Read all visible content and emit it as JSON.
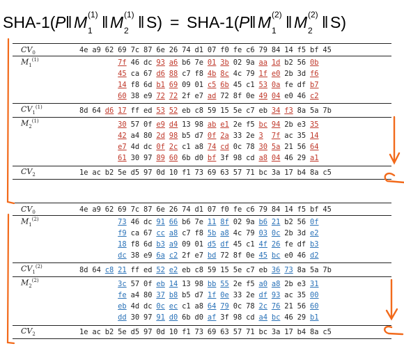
{
  "title": {
    "prefix": "SHA-1(",
    "P": "P",
    "M": "M",
    "sub1": "1",
    "sub2": "2",
    "sup1": "(1)",
    "sup2": "(2)",
    "bars": "‖",
    "S": "S)",
    "equals": "=",
    "prefix2": "SHA-1("
  },
  "labels": {
    "cv0": "CV",
    "cv0_sub": "0",
    "m": "M",
    "cv1": "CV",
    "cv1_sub": "1",
    "cv2": "CV",
    "cv2_sub": "2",
    "sup1": "(1)",
    "sup2": "(2)",
    "sub1": "1",
    "sub2": "2"
  },
  "top": {
    "cv0": [
      "4e",
      "a9",
      "62",
      "69",
      "7c",
      "87",
      "6e",
      "26",
      "74",
      "d1",
      "07",
      "f0",
      "fe",
      "c6",
      "79",
      "84",
      "14",
      "f5",
      "bf",
      "45"
    ],
    "m1": [
      [
        [
          "7f",
          "r"
        ],
        [
          "46",
          ""
        ],
        [
          "dc",
          ""
        ],
        [
          "93",
          "r"
        ],
        [
          "a6",
          "r"
        ],
        [
          "b6",
          ""
        ],
        [
          "7e",
          ""
        ],
        [
          "01",
          "r"
        ],
        [
          "3b",
          "r"
        ],
        [
          "02",
          ""
        ],
        [
          "9a",
          ""
        ],
        [
          "aa",
          "r"
        ],
        [
          "1d",
          "r"
        ],
        [
          "b2",
          ""
        ],
        [
          "56",
          ""
        ],
        [
          "0b",
          "r"
        ]
      ],
      [
        [
          "45",
          "r"
        ],
        [
          "ca",
          ""
        ],
        [
          "67",
          ""
        ],
        [
          "d6",
          "r"
        ],
        [
          "88",
          "r"
        ],
        [
          "c7",
          ""
        ],
        [
          "f8",
          ""
        ],
        [
          "4b",
          "r"
        ],
        [
          "8c",
          "r"
        ],
        [
          "4c",
          ""
        ],
        [
          "79",
          ""
        ],
        [
          "1f",
          "r"
        ],
        [
          "e0",
          "r"
        ],
        [
          "2b",
          ""
        ],
        [
          "3d",
          ""
        ],
        [
          "f6",
          "r"
        ]
      ],
      [
        [
          "14",
          "r"
        ],
        [
          "f8",
          ""
        ],
        [
          "6d",
          ""
        ],
        [
          "b1",
          "r"
        ],
        [
          "69",
          "r"
        ],
        [
          "09",
          ""
        ],
        [
          "01",
          ""
        ],
        [
          "c5",
          "r"
        ],
        [
          "6b",
          "r"
        ],
        [
          "45",
          ""
        ],
        [
          "c1",
          ""
        ],
        [
          "53",
          "r"
        ],
        [
          "0a",
          "r"
        ],
        [
          "fe",
          ""
        ],
        [
          "df",
          ""
        ],
        [
          "b7",
          "r"
        ]
      ],
      [
        [
          "60",
          "r"
        ],
        [
          "38",
          ""
        ],
        [
          "e9",
          ""
        ],
        [
          "72",
          "r"
        ],
        [
          "72",
          "r"
        ],
        [
          "2f",
          ""
        ],
        [
          "e7",
          ""
        ],
        [
          "ad",
          "r"
        ],
        [
          "72",
          ""
        ],
        [
          "8f",
          ""
        ],
        [
          "0e",
          ""
        ],
        [
          "49",
          "r"
        ],
        [
          "04",
          "r"
        ],
        [
          "e0",
          ""
        ],
        [
          "46",
          ""
        ],
        [
          "c2",
          "r"
        ]
      ]
    ],
    "cv1": [
      [
        "8d",
        ""
      ],
      [
        "64",
        ""
      ],
      [
        "d6",
        "r"
      ],
      [
        "17",
        "r"
      ],
      [
        "ff",
        ""
      ],
      [
        "ed",
        ""
      ],
      [
        "53",
        "r"
      ],
      [
        "52",
        "r"
      ],
      [
        "eb",
        ""
      ],
      [
        "c8",
        ""
      ],
      [
        "59",
        ""
      ],
      [
        "15",
        ""
      ],
      [
        "5e",
        ""
      ],
      [
        "c7",
        ""
      ],
      [
        "eb",
        ""
      ],
      [
        "34",
        "r"
      ],
      [
        "f3",
        "r"
      ],
      [
        "8a",
        ""
      ],
      [
        "5a",
        ""
      ],
      [
        "7b",
        ""
      ]
    ],
    "m2": [
      [
        [
          "30",
          "r"
        ],
        [
          "57",
          ""
        ],
        [
          "0f",
          ""
        ],
        [
          "e9",
          "r"
        ],
        [
          "d4",
          "r"
        ],
        [
          "13",
          ""
        ],
        [
          "98",
          ""
        ],
        [
          "ab",
          "r"
        ],
        [
          "e1",
          "r"
        ],
        [
          "2e",
          ""
        ],
        [
          "f5",
          ""
        ],
        [
          "bc",
          "r"
        ],
        [
          "94",
          "r"
        ],
        [
          "2b",
          ""
        ],
        [
          "e3",
          ""
        ],
        [
          "35",
          "r"
        ]
      ],
      [
        [
          "42",
          "r"
        ],
        [
          "a4",
          ""
        ],
        [
          "80",
          ""
        ],
        [
          "2d",
          "r"
        ],
        [
          "98",
          "r"
        ],
        [
          "b5",
          ""
        ],
        [
          "d7",
          ""
        ],
        [
          "0f",
          "r"
        ],
        [
          "2a",
          "r"
        ],
        [
          "33",
          ""
        ],
        [
          "2e",
          ""
        ],
        [
          "3",
          "r"
        ],
        [
          "7f",
          "r"
        ],
        [
          "ac",
          ""
        ],
        [
          "35",
          ""
        ],
        [
          "14",
          "r"
        ]
      ],
      [
        [
          "e7",
          "r"
        ],
        [
          "4d",
          ""
        ],
        [
          "dc",
          ""
        ],
        [
          "0f",
          "r"
        ],
        [
          "2c",
          "r"
        ],
        [
          "c1",
          ""
        ],
        [
          "a8",
          ""
        ],
        [
          "74",
          "r"
        ],
        [
          "cd",
          "r"
        ],
        [
          "0c",
          ""
        ],
        [
          "78",
          ""
        ],
        [
          "30",
          "r"
        ],
        [
          "5a",
          "r"
        ],
        [
          "21",
          ""
        ],
        [
          "56",
          ""
        ],
        [
          "64",
          "r"
        ]
      ],
      [
        [
          "61",
          "r"
        ],
        [
          "30",
          ""
        ],
        [
          "97",
          ""
        ],
        [
          "89",
          "r"
        ],
        [
          "60",
          "r"
        ],
        [
          "6b",
          ""
        ],
        [
          "d0",
          ""
        ],
        [
          "bf",
          "r"
        ],
        [
          "3f",
          ""
        ],
        [
          "98",
          ""
        ],
        [
          "cd",
          ""
        ],
        [
          "a8",
          "r"
        ],
        [
          "04",
          "r"
        ],
        [
          "46",
          ""
        ],
        [
          "29",
          ""
        ],
        [
          "a1",
          "r"
        ]
      ]
    ],
    "cv2": [
      "1e",
      "ac",
      "b2",
      "5e",
      "d5",
      "97",
      "0d",
      "10",
      "f1",
      "73",
      "69",
      "63",
      "57",
      "71",
      "bc",
      "3a",
      "17",
      "b4",
      "8a",
      "c5"
    ]
  },
  "bottom": {
    "cv0": [
      "4e",
      "a9",
      "62",
      "69",
      "7c",
      "87",
      "6e",
      "26",
      "74",
      "d1",
      "07",
      "f0",
      "fe",
      "c6",
      "79",
      "84",
      "14",
      "f5",
      "bf",
      "45"
    ],
    "m1": [
      [
        [
          "73",
          "b"
        ],
        [
          "46",
          ""
        ],
        [
          "dc",
          ""
        ],
        [
          "91",
          "b"
        ],
        [
          "66",
          "b"
        ],
        [
          "b6",
          ""
        ],
        [
          "7e",
          ""
        ],
        [
          "11",
          "b"
        ],
        [
          "8f",
          "b"
        ],
        [
          "02",
          ""
        ],
        [
          "9a",
          ""
        ],
        [
          "b6",
          "b"
        ],
        [
          "21",
          "b"
        ],
        [
          "b2",
          ""
        ],
        [
          "56",
          ""
        ],
        [
          "0f",
          "b"
        ]
      ],
      [
        [
          "f9",
          "b"
        ],
        [
          "ca",
          ""
        ],
        [
          "67",
          ""
        ],
        [
          "cc",
          "b"
        ],
        [
          "a8",
          "b"
        ],
        [
          "c7",
          ""
        ],
        [
          "f8",
          ""
        ],
        [
          "5b",
          "b"
        ],
        [
          "a8",
          "b"
        ],
        [
          "4c",
          ""
        ],
        [
          "79",
          ""
        ],
        [
          "03",
          "b"
        ],
        [
          "0c",
          "b"
        ],
        [
          "2b",
          ""
        ],
        [
          "3d",
          ""
        ],
        [
          "e2",
          "b"
        ]
      ],
      [
        [
          "18",
          "b"
        ],
        [
          "f8",
          ""
        ],
        [
          "6d",
          ""
        ],
        [
          "b3",
          "b"
        ],
        [
          "a9",
          "b"
        ],
        [
          "09",
          ""
        ],
        [
          "01",
          ""
        ],
        [
          "d5",
          "b"
        ],
        [
          "df",
          "b"
        ],
        [
          "45",
          ""
        ],
        [
          "c1",
          ""
        ],
        [
          "4f",
          "b"
        ],
        [
          "26",
          "b"
        ],
        [
          "fe",
          ""
        ],
        [
          "df",
          ""
        ],
        [
          "b3",
          "b"
        ]
      ],
      [
        [
          "dc",
          "b"
        ],
        [
          "38",
          ""
        ],
        [
          "e9",
          ""
        ],
        [
          "6a",
          "b"
        ],
        [
          "c2",
          "b"
        ],
        [
          "2f",
          ""
        ],
        [
          "e7",
          ""
        ],
        [
          "bd",
          "b"
        ],
        [
          "72",
          ""
        ],
        [
          "8f",
          ""
        ],
        [
          "0e",
          ""
        ],
        [
          "45",
          "b"
        ],
        [
          "bc",
          "b"
        ],
        [
          "e0",
          ""
        ],
        [
          "46",
          ""
        ],
        [
          "d2",
          "b"
        ]
      ]
    ],
    "cv1": [
      [
        "8d",
        ""
      ],
      [
        "64",
        ""
      ],
      [
        "c8",
        "b"
      ],
      [
        "21",
        "b"
      ],
      [
        "ff",
        ""
      ],
      [
        "ed",
        ""
      ],
      [
        "52",
        "b"
      ],
      [
        "e2",
        "b"
      ],
      [
        "eb",
        ""
      ],
      [
        "c8",
        ""
      ],
      [
        "59",
        ""
      ],
      [
        "15",
        ""
      ],
      [
        "5e",
        ""
      ],
      [
        "c7",
        ""
      ],
      [
        "eb",
        ""
      ],
      [
        "36",
        "b"
      ],
      [
        "73",
        "b"
      ],
      [
        "8a",
        ""
      ],
      [
        "5a",
        ""
      ],
      [
        "7b",
        ""
      ]
    ],
    "m2": [
      [
        [
          "3c",
          "b"
        ],
        [
          "57",
          ""
        ],
        [
          "0f",
          ""
        ],
        [
          "eb",
          "b"
        ],
        [
          "14",
          "b"
        ],
        [
          "13",
          ""
        ],
        [
          "98",
          ""
        ],
        [
          "bb",
          "b"
        ],
        [
          "55",
          "b"
        ],
        [
          "2e",
          ""
        ],
        [
          "f5",
          ""
        ],
        [
          "a0",
          "b"
        ],
        [
          "a8",
          "b"
        ],
        [
          "2b",
          ""
        ],
        [
          "e3",
          ""
        ],
        [
          "31",
          "b"
        ]
      ],
      [
        [
          "fe",
          "b"
        ],
        [
          "a4",
          ""
        ],
        [
          "80",
          ""
        ],
        [
          "37",
          "b"
        ],
        [
          "b8",
          "b"
        ],
        [
          "b5",
          ""
        ],
        [
          "d7",
          ""
        ],
        [
          "1f",
          "b"
        ],
        [
          "0e",
          "b"
        ],
        [
          "33",
          ""
        ],
        [
          "2e",
          ""
        ],
        [
          "df",
          "b"
        ],
        [
          "93",
          "b"
        ],
        [
          "ac",
          ""
        ],
        [
          "35",
          ""
        ],
        [
          "00",
          "b"
        ]
      ],
      [
        [
          "eb",
          "b"
        ],
        [
          "4d",
          ""
        ],
        [
          "dc",
          ""
        ],
        [
          "0c",
          "b"
        ],
        [
          "ec",
          "b"
        ],
        [
          "c1",
          ""
        ],
        [
          "a8",
          ""
        ],
        [
          "64",
          "b"
        ],
        [
          "79",
          "b"
        ],
        [
          "0c",
          ""
        ],
        [
          "78",
          ""
        ],
        [
          "2c",
          "b"
        ],
        [
          "76",
          "b"
        ],
        [
          "21",
          ""
        ],
        [
          "56",
          ""
        ],
        [
          "60",
          "b"
        ]
      ],
      [
        [
          "dd",
          "b"
        ],
        [
          "30",
          ""
        ],
        [
          "97",
          ""
        ],
        [
          "91",
          "b"
        ],
        [
          "d0",
          "b"
        ],
        [
          "6b",
          ""
        ],
        [
          "d0",
          ""
        ],
        [
          "af",
          "b"
        ],
        [
          "3f",
          ""
        ],
        [
          "98",
          ""
        ],
        [
          "cd",
          ""
        ],
        [
          "a4",
          "b"
        ],
        [
          "bc",
          "b"
        ],
        [
          "46",
          ""
        ],
        [
          "29",
          ""
        ],
        [
          "b1",
          "b"
        ]
      ]
    ],
    "cv2": [
      "1e",
      "ac",
      "b2",
      "5e",
      "d5",
      "97",
      "0d",
      "10",
      "f1",
      "73",
      "69",
      "63",
      "57",
      "71",
      "bc",
      "3a",
      "17",
      "b4",
      "8a",
      "c5"
    ]
  },
  "colors": {
    "red": "#c0392b",
    "blue": "#2a72b8",
    "orange": "#f26a1b"
  }
}
